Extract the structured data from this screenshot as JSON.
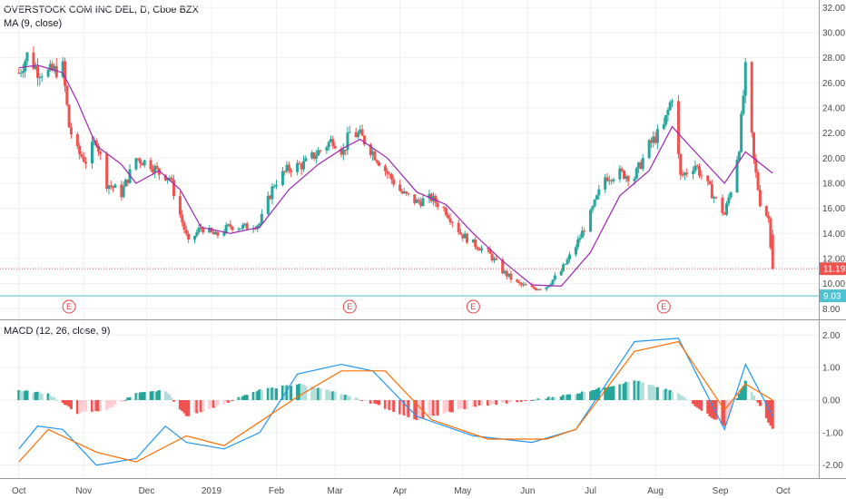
{
  "chart_data": {
    "type": "candlestick",
    "price_panel": {
      "title": "OVERSTOCK COM INC DEL, D, Cboe BZX",
      "indicator": "MA (9, close)",
      "y_ticks": [
        "32.00",
        "30.00",
        "28.00",
        "26.00",
        "24.00",
        "22.00",
        "20.00",
        "18.00",
        "16.00",
        "14.00",
        "12.00",
        "10.00",
        "8.00"
      ],
      "ylim": [
        7.3,
        32.6
      ],
      "last_price": 11.19,
      "last_price_label": "11.19",
      "support_level": 9.03,
      "support_label": "9.03",
      "earnings_marker_label": "E",
      "earnings_dates": [
        "2018-10-25",
        "2019-03-08",
        "2019-05-06",
        "2019-08-05"
      ],
      "close_series": [
        {
          "date": "2018-10-01",
          "value": 26.8
        },
        {
          "date": "2018-10-05",
          "value": 28.2
        },
        {
          "date": "2018-10-10",
          "value": 27.0
        },
        {
          "date": "2018-10-15",
          "value": 26.8
        },
        {
          "date": "2018-10-22",
          "value": 27.2
        },
        {
          "date": "2018-10-25",
          "value": 22.5
        },
        {
          "date": "2018-10-29",
          "value": 20.5
        },
        {
          "date": "2018-11-02",
          "value": 19.8
        },
        {
          "date": "2018-11-07",
          "value": 21.5
        },
        {
          "date": "2018-11-12",
          "value": 18.0
        },
        {
          "date": "2018-11-19",
          "value": 17.2
        },
        {
          "date": "2018-11-26",
          "value": 20.0
        },
        {
          "date": "2018-12-03",
          "value": 19.5
        },
        {
          "date": "2018-12-07",
          "value": 18.8
        },
        {
          "date": "2018-12-12",
          "value": 18.5
        },
        {
          "date": "2018-12-17",
          "value": 15.5
        },
        {
          "date": "2018-12-21",
          "value": 13.2
        },
        {
          "date": "2018-12-27",
          "value": 14.5
        },
        {
          "date": "2019-01-03",
          "value": 13.8
        },
        {
          "date": "2019-01-10",
          "value": 14.6
        },
        {
          "date": "2019-01-17",
          "value": 14.5
        },
        {
          "date": "2019-01-24",
          "value": 14.8
        },
        {
          "date": "2019-01-31",
          "value": 18.0
        },
        {
          "date": "2019-02-07",
          "value": 19.2
        },
        {
          "date": "2019-02-14",
          "value": 19.5
        },
        {
          "date": "2019-02-21",
          "value": 20.5
        },
        {
          "date": "2019-02-28",
          "value": 21.5
        },
        {
          "date": "2019-03-05",
          "value": 20.5
        },
        {
          "date": "2019-03-08",
          "value": 22.0
        },
        {
          "date": "2019-03-13",
          "value": 21.8
        },
        {
          "date": "2019-03-19",
          "value": 20.5
        },
        {
          "date": "2019-03-26",
          "value": 18.8
        },
        {
          "date": "2019-04-02",
          "value": 17.2
        },
        {
          "date": "2019-04-09",
          "value": 16.5
        },
        {
          "date": "2019-04-16",
          "value": 16.8
        },
        {
          "date": "2019-04-23",
          "value": 15.8
        },
        {
          "date": "2019-04-30",
          "value": 14.0
        },
        {
          "date": "2019-05-06",
          "value": 13.2
        },
        {
          "date": "2019-05-13",
          "value": 12.5
        },
        {
          "date": "2019-05-20",
          "value": 11.0
        },
        {
          "date": "2019-05-27",
          "value": 10.0
        },
        {
          "date": "2019-06-03",
          "value": 9.6
        },
        {
          "date": "2019-06-10",
          "value": 9.8
        },
        {
          "date": "2019-06-17",
          "value": 11.0
        },
        {
          "date": "2019-06-24",
          "value": 13.0
        },
        {
          "date": "2019-07-01",
          "value": 15.5
        },
        {
          "date": "2019-07-08",
          "value": 18.5
        },
        {
          "date": "2019-07-15",
          "value": 18.8
        },
        {
          "date": "2019-07-22",
          "value": 18.5
        },
        {
          "date": "2019-07-29",
          "value": 21.0
        },
        {
          "date": "2019-08-05",
          "value": 22.5
        },
        {
          "date": "2019-08-09",
          "value": 25.0
        },
        {
          "date": "2019-08-13",
          "value": 18.5
        },
        {
          "date": "2019-08-20",
          "value": 19.5
        },
        {
          "date": "2019-08-27",
          "value": 17.5
        },
        {
          "date": "2019-09-03",
          "value": 15.5
        },
        {
          "date": "2019-09-06",
          "value": 17.5
        },
        {
          "date": "2019-09-10",
          "value": 21.0
        },
        {
          "date": "2019-09-13",
          "value": 27.0
        },
        {
          "date": "2019-09-17",
          "value": 19.8
        },
        {
          "date": "2019-09-20",
          "value": 16.5
        },
        {
          "date": "2019-09-24",
          "value": 15.2
        },
        {
          "date": "2019-09-26",
          "value": 11.19
        }
      ],
      "ma_series": [
        {
          "date": "2018-10-01",
          "value": 27.2
        },
        {
          "date": "2018-10-10",
          "value": 27.4
        },
        {
          "date": "2018-10-22",
          "value": 26.8
        },
        {
          "date": "2018-10-29",
          "value": 24.5
        },
        {
          "date": "2018-11-07",
          "value": 21.0
        },
        {
          "date": "2018-11-19",
          "value": 19.5
        },
        {
          "date": "2018-11-26",
          "value": 18.0
        },
        {
          "date": "2018-12-07",
          "value": 19.0
        },
        {
          "date": "2018-12-17",
          "value": 17.5
        },
        {
          "date": "2018-12-27",
          "value": 14.5
        },
        {
          "date": "2019-01-10",
          "value": 14.0
        },
        {
          "date": "2019-01-24",
          "value": 14.5
        },
        {
          "date": "2019-02-07",
          "value": 17.5
        },
        {
          "date": "2019-02-21",
          "value": 19.5
        },
        {
          "date": "2019-03-05",
          "value": 20.8
        },
        {
          "date": "2019-03-13",
          "value": 21.5
        },
        {
          "date": "2019-03-26",
          "value": 20.0
        },
        {
          "date": "2019-04-09",
          "value": 17.3
        },
        {
          "date": "2019-04-23",
          "value": 16.3
        },
        {
          "date": "2019-05-06",
          "value": 14.0
        },
        {
          "date": "2019-05-20",
          "value": 11.8
        },
        {
          "date": "2019-06-03",
          "value": 9.9
        },
        {
          "date": "2019-06-17",
          "value": 9.8
        },
        {
          "date": "2019-07-01",
          "value": 12.5
        },
        {
          "date": "2019-07-15",
          "value": 17.0
        },
        {
          "date": "2019-07-29",
          "value": 19.0
        },
        {
          "date": "2019-08-09",
          "value": 22.5
        },
        {
          "date": "2019-08-20",
          "value": 20.5
        },
        {
          "date": "2019-09-03",
          "value": 18.0
        },
        {
          "date": "2019-09-13",
          "value": 20.5
        },
        {
          "date": "2019-09-26",
          "value": 18.8
        }
      ]
    },
    "macd_panel": {
      "title": "MACD (12, 26, close, 9)",
      "y_ticks": [
        "2.00",
        "1.00",
        "0.00",
        "-1.00",
        "-2.00"
      ],
      "ylim": [
        -2.4,
        2.4
      ],
      "macd_series": [
        {
          "date": "2018-10-01",
          "value": -1.5
        },
        {
          "date": "2018-10-10",
          "value": -0.8
        },
        {
          "date": "2018-10-22",
          "value": -0.9
        },
        {
          "date": "2018-11-07",
          "value": -2.0
        },
        {
          "date": "2018-11-26",
          "value": -1.8
        },
        {
          "date": "2018-12-10",
          "value": -0.8
        },
        {
          "date": "2018-12-20",
          "value": -1.3
        },
        {
          "date": "2019-01-07",
          "value": -1.5
        },
        {
          "date": "2019-01-24",
          "value": -1.0
        },
        {
          "date": "2019-02-11",
          "value": 0.8
        },
        {
          "date": "2019-03-04",
          "value": 1.1
        },
        {
          "date": "2019-03-19",
          "value": 0.9
        },
        {
          "date": "2019-04-09",
          "value": -0.5
        },
        {
          "date": "2019-05-06",
          "value": -1.1
        },
        {
          "date": "2019-06-03",
          "value": -1.3
        },
        {
          "date": "2019-06-24",
          "value": -0.9
        },
        {
          "date": "2019-07-22",
          "value": 1.8
        },
        {
          "date": "2019-08-12",
          "value": 1.9
        },
        {
          "date": "2019-09-03",
          "value": -0.9
        },
        {
          "date": "2019-09-13",
          "value": 1.1
        },
        {
          "date": "2019-09-26",
          "value": -0.5
        }
      ],
      "signal_series": [
        {
          "date": "2018-10-01",
          "value": -1.9
        },
        {
          "date": "2018-10-15",
          "value": -0.9
        },
        {
          "date": "2018-11-07",
          "value": -1.6
        },
        {
          "date": "2018-11-26",
          "value": -1.9
        },
        {
          "date": "2018-12-20",
          "value": -1.1
        },
        {
          "date": "2019-01-07",
          "value": -1.4
        },
        {
          "date": "2019-02-11",
          "value": 0.1
        },
        {
          "date": "2019-03-04",
          "value": 0.9
        },
        {
          "date": "2019-03-25",
          "value": 0.9
        },
        {
          "date": "2019-04-16",
          "value": -0.6
        },
        {
          "date": "2019-05-13",
          "value": -1.2
        },
        {
          "date": "2019-06-10",
          "value": -1.2
        },
        {
          "date": "2019-06-24",
          "value": -0.9
        },
        {
          "date": "2019-07-22",
          "value": 1.5
        },
        {
          "date": "2019-08-12",
          "value": 1.8
        },
        {
          "date": "2019-09-03",
          "value": -0.3
        },
        {
          "date": "2019-09-13",
          "value": 0.5
        },
        {
          "date": "2019-09-26",
          "value": 0.0
        }
      ],
      "histogram": [
        {
          "date": "2018-10-01",
          "value": 0.3
        },
        {
          "date": "2018-10-15",
          "value": 0.2
        },
        {
          "date": "2018-10-29",
          "value": -0.4
        },
        {
          "date": "2018-11-12",
          "value": -0.3
        },
        {
          "date": "2018-11-26",
          "value": 0.2
        },
        {
          "date": "2018-12-10",
          "value": 0.3
        },
        {
          "date": "2018-12-20",
          "value": -0.5
        },
        {
          "date": "2019-01-07",
          "value": -0.1
        },
        {
          "date": "2019-01-24",
          "value": 0.3
        },
        {
          "date": "2019-02-11",
          "value": 0.5
        },
        {
          "date": "2019-03-04",
          "value": 0.2
        },
        {
          "date": "2019-03-19",
          "value": -0.1
        },
        {
          "date": "2019-04-09",
          "value": -0.6
        },
        {
          "date": "2019-05-06",
          "value": -0.2
        },
        {
          "date": "2019-06-03",
          "value": 0.0
        },
        {
          "date": "2019-06-24",
          "value": 0.2
        },
        {
          "date": "2019-07-22",
          "value": 0.6
        },
        {
          "date": "2019-08-12",
          "value": 0.2
        },
        {
          "date": "2019-09-03",
          "value": -0.8
        },
        {
          "date": "2019-09-13",
          "value": 0.6
        },
        {
          "date": "2019-09-26",
          "value": -0.9
        }
      ]
    },
    "x_axis": {
      "ticks": [
        {
          "label": "Oct",
          "date": "2018-10-01"
        },
        {
          "label": "Nov",
          "date": "2018-11-01"
        },
        {
          "label": "Dec",
          "date": "2018-12-01"
        },
        {
          "label": "2019",
          "date": "2019-01-01"
        },
        {
          "label": "Feb",
          "date": "2019-02-01"
        },
        {
          "label": "Mar",
          "date": "2019-03-01"
        },
        {
          "label": "Apr",
          "date": "2019-04-01"
        },
        {
          "label": "May",
          "date": "2019-05-01"
        },
        {
          "label": "Jun",
          "date": "2019-06-01"
        },
        {
          "label": "Jul",
          "date": "2019-07-01"
        },
        {
          "label": "Aug",
          "date": "2019-08-01"
        },
        {
          "label": "Sep",
          "date": "2019-09-01"
        },
        {
          "label": "Oct",
          "date": "2019-10-01"
        }
      ],
      "range": [
        "2018-09-22",
        "2019-10-18"
      ]
    },
    "grid": true,
    "colors": {
      "up": "#26a69a",
      "down": "#ef5350",
      "ma": "#9c27b0",
      "macd": "#2196f3",
      "signal": "#ff6d00",
      "hist_up": "#26a69a",
      "hist_down": "#ef5350",
      "last_price": "#ef5350",
      "support": "#4dc3d1",
      "earnings": "#e04444"
    }
  }
}
